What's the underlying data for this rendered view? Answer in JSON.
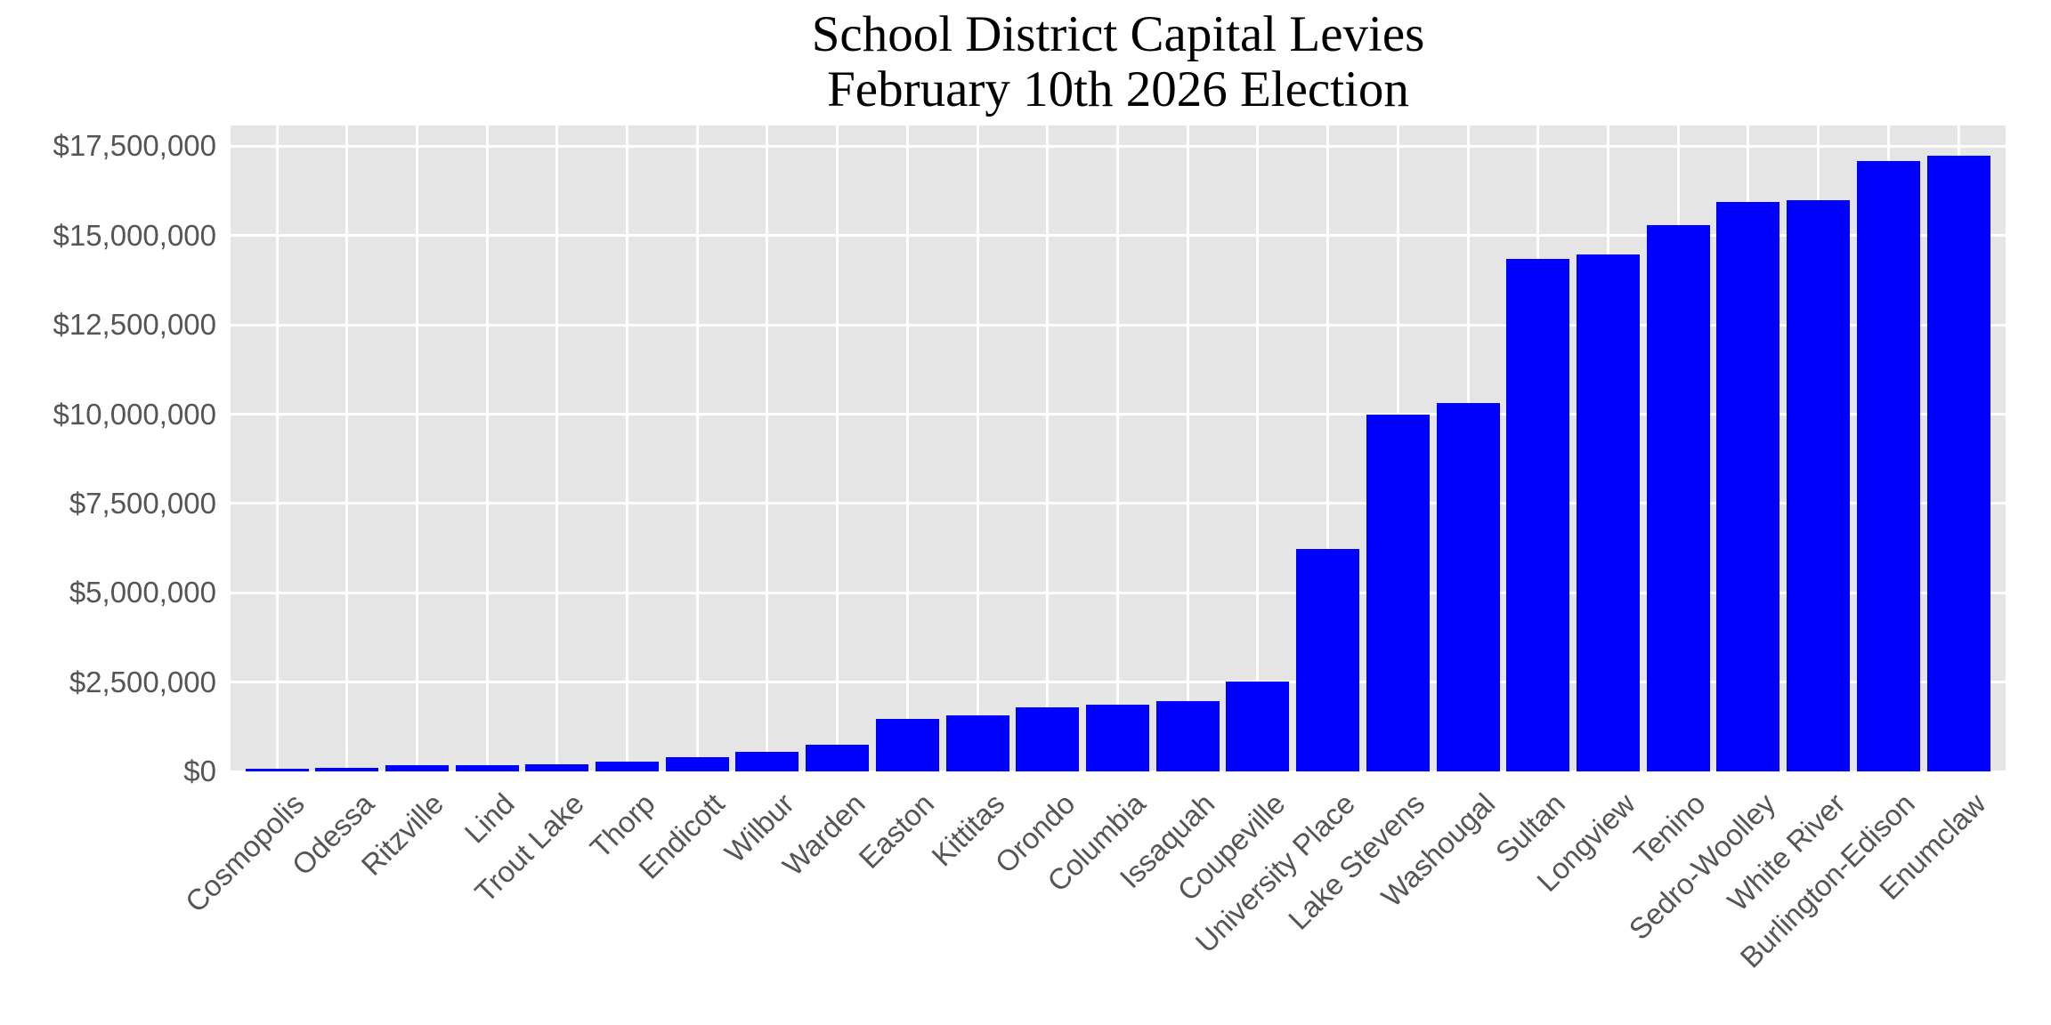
{
  "chart_data": {
    "type": "bar",
    "title": "School District Capital Levies\nFebruary 10th 2026 Election",
    "title_lines": [
      "School District Capital Levies",
      "February 10th 2026 Election"
    ],
    "xlabel": "",
    "ylabel": "",
    "ylim": [
      0,
      18100000
    ],
    "grid": true,
    "legend": null,
    "bar_color": "#0000ff",
    "background_color": "#e5e5e5",
    "yticks": [
      0,
      2500000,
      5000000,
      7500000,
      10000000,
      12500000,
      15000000,
      17500000
    ],
    "ytick_labels": [
      "$0",
      "$2,500,000",
      "$5,000,000",
      "$7,500,000",
      "$10,000,000",
      "$12,500,000",
      "$15,000,000",
      "$17,500,000"
    ],
    "categories": [
      "Cosmopolis",
      "Odessa",
      "Ritzville",
      "Lind",
      "Trout Lake",
      "Thorp",
      "Endicott",
      "Wilbur",
      "Warden",
      "Easton",
      "Kittitas",
      "Orondo",
      "Columbia",
      "Issaquah",
      "Coupeville",
      "University Place",
      "Lake Stevens",
      "Washougal",
      "Sultan",
      "Longview",
      "Tenino",
      "Sedro-Woolley",
      "White River",
      "Burlington-Edison",
      "Enumclaw"
    ],
    "values": [
      70000,
      95000,
      165000,
      165000,
      190000,
      265000,
      390000,
      560000,
      740000,
      1460000,
      1580000,
      1800000,
      1880000,
      1980000,
      2520000,
      6220000,
      10000000,
      10300000,
      14340000,
      14470000,
      15300000,
      15930000,
      16000000,
      17080000,
      17230000
    ]
  }
}
